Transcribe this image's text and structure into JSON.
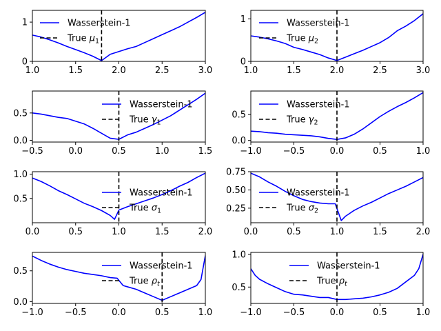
{
  "chart_data": [
    {
      "type": "line",
      "xlim": [
        1.0,
        3.0
      ],
      "ylim": [
        0,
        1.3
      ],
      "xticks": [
        1.0,
        1.5,
        2.0,
        2.5,
        3.0
      ],
      "xtick_labels": [
        "1.0",
        "1.5",
        "2.0",
        "2.5",
        "3.0"
      ],
      "yticks": [
        0,
        1
      ],
      "ytick_labels": [
        "0",
        "1"
      ],
      "legend_loc": "upper-left",
      "series": [
        {
          "name": "Wasserstein-1",
          "color": "#0000ff",
          "style": "solid",
          "x": [
            1.0,
            1.1,
            1.2,
            1.3,
            1.4,
            1.5,
            1.6,
            1.7,
            1.8,
            1.9,
            2.0,
            2.1,
            2.2,
            2.3,
            2.4,
            2.5,
            2.6,
            2.7,
            2.8,
            2.9,
            3.0
          ],
          "y": [
            0.67,
            0.62,
            0.55,
            0.47,
            0.38,
            0.3,
            0.22,
            0.13,
            0.02,
            0.18,
            0.25,
            0.32,
            0.38,
            0.48,
            0.58,
            0.68,
            0.78,
            0.88,
            1.0,
            1.12,
            1.25
          ]
        }
      ],
      "vline": {
        "name": "True μ₁",
        "name_base": "True ",
        "name_math": "μ",
        "name_sub": "1",
        "x": 1.8,
        "color": "#000000",
        "style": "dashed"
      }
    },
    {
      "type": "line",
      "xlim": [
        1.0,
        3.0
      ],
      "ylim": [
        0,
        1.2
      ],
      "xticks": [
        1.0,
        1.5,
        2.0,
        2.5,
        3.0
      ],
      "xtick_labels": [
        "1.0",
        "1.5",
        "2.0",
        "2.5",
        "3.0"
      ],
      "yticks": [
        0,
        1
      ],
      "ytick_labels": [
        "0",
        "1"
      ],
      "legend_loc": "upper-left",
      "series": [
        {
          "name": "Wasserstein-1",
          "color": "#0000ff",
          "style": "solid",
          "x": [
            1.0,
            1.1,
            1.2,
            1.3,
            1.4,
            1.5,
            1.6,
            1.7,
            1.8,
            1.9,
            2.0,
            2.1,
            2.2,
            2.3,
            2.4,
            2.5,
            2.6,
            2.7,
            2.8,
            2.9,
            3.0
          ],
          "y": [
            0.6,
            0.57,
            0.53,
            0.48,
            0.42,
            0.33,
            0.28,
            0.22,
            0.16,
            0.08,
            0.02,
            0.1,
            0.18,
            0.26,
            0.35,
            0.44,
            0.56,
            0.72,
            0.83,
            0.96,
            1.12
          ]
        }
      ],
      "vline": {
        "name": "True μ₂",
        "name_base": "True ",
        "name_math": "μ",
        "name_sub": "2",
        "x": 2.0,
        "color": "#000000",
        "style": "dashed"
      }
    },
    {
      "type": "line",
      "xlim": [
        -0.5,
        1.5
      ],
      "ylim": [
        -0.03,
        0.9
      ],
      "xticks": [
        -0.5,
        0.0,
        0.5,
        1.0,
        1.5
      ],
      "xtick_labels": [
        "−0.5",
        "0.0",
        "0.5",
        "1.0",
        "1.5"
      ],
      "yticks": [
        0.0,
        0.5
      ],
      "ytick_labels": [
        "0.0",
        "0.5"
      ],
      "legend_loc": "upper-right",
      "series": [
        {
          "name": "Wasserstein-1",
          "color": "#0000ff",
          "style": "solid",
          "x": [
            -0.5,
            -0.4,
            -0.3,
            -0.2,
            -0.1,
            0.0,
            0.1,
            0.2,
            0.3,
            0.4,
            0.5,
            0.6,
            0.7,
            0.8,
            0.9,
            1.0,
            1.1,
            1.2,
            1.3,
            1.4,
            1.5
          ],
          "y": [
            0.5,
            0.48,
            0.45,
            0.42,
            0.4,
            0.35,
            0.3,
            0.22,
            0.13,
            0.04,
            0.02,
            0.1,
            0.15,
            0.22,
            0.29,
            0.37,
            0.45,
            0.55,
            0.65,
            0.75,
            0.86
          ]
        }
      ],
      "vline": {
        "name": "True γ₁",
        "name_base": "True ",
        "name_math": "γ",
        "name_sub": "1",
        "x": 0.5,
        "color": "#000000",
        "style": "dashed"
      }
    },
    {
      "type": "line",
      "xlim": [
        -1.0,
        1.0
      ],
      "ylim": [
        -0.03,
        0.95
      ],
      "xticks": [
        -1.0,
        -0.5,
        0.0,
        0.5,
        1.0
      ],
      "xtick_labels": [
        "−1.0",
        "−0.5",
        "0.0",
        "0.5",
        "1.0"
      ],
      "yticks": [
        0.0,
        0.5
      ],
      "ytick_labels": [
        "0.0",
        "0.5"
      ],
      "legend_loc": "upper-left",
      "series": [
        {
          "name": "Wasserstein-1",
          "color": "#0000ff",
          "style": "solid",
          "x": [
            -1.0,
            -0.9,
            -0.8,
            -0.7,
            -0.6,
            -0.5,
            -0.4,
            -0.3,
            -0.2,
            -0.1,
            0.0,
            0.1,
            0.2,
            0.3,
            0.4,
            0.5,
            0.6,
            0.7,
            0.8,
            0.9,
            1.0
          ],
          "y": [
            0.18,
            0.17,
            0.15,
            0.14,
            0.12,
            0.11,
            0.1,
            0.09,
            0.07,
            0.04,
            0.02,
            0.05,
            0.12,
            0.22,
            0.34,
            0.46,
            0.56,
            0.65,
            0.73,
            0.82,
            0.92
          ]
        }
      ],
      "vline": {
        "name": "True γ₂",
        "name_base": "True ",
        "name_math": "γ",
        "name_sub": "2",
        "x": 0.0,
        "color": "#000000",
        "style": "dashed"
      }
    },
    {
      "type": "line",
      "xlim": [
        0.0,
        2.0
      ],
      "ylim": [
        0.0,
        1.05
      ],
      "xticks": [
        0.0,
        0.5,
        1.0,
        1.5,
        2.0
      ],
      "xtick_labels": [
        "0.0",
        "0.5",
        "1.0",
        "1.5",
        "2.0"
      ],
      "yticks": [
        0.5,
        1.0
      ],
      "ytick_labels": [
        "0.5",
        "1.0"
      ],
      "legend_loc": "center-right",
      "series": [
        {
          "name": "Wasserstein-1",
          "color": "#0000ff",
          "style": "solid",
          "x": [
            0.0,
            0.1,
            0.2,
            0.3,
            0.4,
            0.5,
            0.6,
            0.7,
            0.8,
            0.9,
            0.95,
            1.0,
            1.1,
            1.2,
            1.3,
            1.4,
            1.5,
            1.6,
            1.7,
            1.8,
            1.9,
            2.0
          ],
          "y": [
            0.92,
            0.85,
            0.76,
            0.66,
            0.58,
            0.49,
            0.4,
            0.33,
            0.25,
            0.15,
            0.07,
            0.26,
            0.33,
            0.39,
            0.45,
            0.51,
            0.58,
            0.66,
            0.75,
            0.83,
            0.93,
            1.02
          ]
        }
      ],
      "vline": {
        "name": "True σ₁",
        "name_base": "True ",
        "name_math": "σ",
        "name_sub": "1",
        "x": 1.0,
        "color": "#000000",
        "style": "dashed"
      }
    },
    {
      "type": "line",
      "xlim": [
        0.0,
        2.0
      ],
      "ylim": [
        0.05,
        0.75
      ],
      "xticks": [
        0.0,
        0.5,
        1.0,
        1.5,
        2.0
      ],
      "xtick_labels": [
        "0.0",
        "0.5",
        "1.0",
        "1.5",
        "2.0"
      ],
      "yticks": [
        0.25,
        0.5,
        0.75
      ],
      "ytick_labels": [
        "0.25",
        "0.50",
        "0.75"
      ],
      "legend_loc": "center",
      "series": [
        {
          "name": "Wasserstein-1",
          "color": "#0000ff",
          "style": "solid",
          "x": [
            0.0,
            0.1,
            0.2,
            0.3,
            0.4,
            0.5,
            0.6,
            0.7,
            0.8,
            0.9,
            0.98,
            1.05,
            1.1,
            1.2,
            1.3,
            1.4,
            1.5,
            1.6,
            1.7,
            1.8,
            1.9,
            2.0
          ],
          "y": [
            0.73,
            0.68,
            0.61,
            0.55,
            0.48,
            0.42,
            0.37,
            0.34,
            0.32,
            0.31,
            0.31,
            0.08,
            0.14,
            0.22,
            0.28,
            0.33,
            0.39,
            0.45,
            0.5,
            0.55,
            0.61,
            0.67
          ]
        }
      ],
      "vline": {
        "name": "True σ₂",
        "name_base": "True ",
        "name_math": "σ",
        "name_sub": "2",
        "x": 1.0,
        "color": "#000000",
        "style": "dashed"
      }
    },
    {
      "type": "line",
      "xlim": [
        -1.0,
        1.0
      ],
      "ylim": [
        -0.03,
        0.8
      ],
      "xticks": [
        -1.0,
        -0.5,
        0.0,
        0.5,
        1.0
      ],
      "xtick_labels": [
        "−1.0",
        "−0.5",
        "0.0",
        "0.5",
        "1.0"
      ],
      "yticks": [
        0.0,
        0.5
      ],
      "ytick_labels": [
        "0.0",
        "0.5"
      ],
      "legend_loc": "upper-right",
      "series": [
        {
          "name": "Wasserstein-1",
          "color": "#0000ff",
          "style": "solid",
          "x": [
            -1.0,
            -0.9,
            -0.8,
            -0.7,
            -0.6,
            -0.5,
            -0.4,
            -0.3,
            -0.2,
            -0.1,
            -0.02,
            0.05,
            0.1,
            0.2,
            0.3,
            0.4,
            0.5,
            0.6,
            0.7,
            0.8,
            0.9,
            0.95,
            1.0
          ],
          "y": [
            0.74,
            0.67,
            0.61,
            0.56,
            0.52,
            0.49,
            0.46,
            0.44,
            0.42,
            0.39,
            0.38,
            0.26,
            0.24,
            0.2,
            0.14,
            0.08,
            0.02,
            0.08,
            0.14,
            0.2,
            0.26,
            0.36,
            0.75
          ]
        }
      ],
      "vline": {
        "name": "True ρₜ",
        "name_base": "True ",
        "name_math": "ρ",
        "name_sub": "t",
        "x": 0.5,
        "color": "#000000",
        "style": "dashed"
      }
    },
    {
      "type": "line",
      "xlim": [
        -1.0,
        1.0
      ],
      "ylim": [
        0.25,
        1.03
      ],
      "xticks": [
        -1.0,
        -0.5,
        0.0,
        0.5,
        1.0
      ],
      "xtick_labels": [
        "−1.0",
        "−0.5",
        "0.0",
        "0.5",
        "1.0"
      ],
      "yticks": [
        0.5,
        1.0
      ],
      "ytick_labels": [
        "0.5",
        "1.0"
      ],
      "legend_loc": "upper-center",
      "series": [
        {
          "name": "Wasserstein-1",
          "color": "#0000ff",
          "style": "solid",
          "x": [
            -1.0,
            -0.95,
            -0.9,
            -0.8,
            -0.7,
            -0.6,
            -0.5,
            -0.4,
            -0.3,
            -0.2,
            -0.1,
            0.0,
            0.1,
            0.2,
            0.3,
            0.4,
            0.5,
            0.6,
            0.7,
            0.8,
            0.9,
            0.95,
            1.0
          ],
          "y": [
            0.78,
            0.68,
            0.62,
            0.55,
            0.49,
            0.43,
            0.39,
            0.38,
            0.36,
            0.34,
            0.34,
            0.31,
            0.31,
            0.32,
            0.33,
            0.35,
            0.38,
            0.42,
            0.48,
            0.58,
            0.68,
            0.78,
            1.0
          ]
        }
      ],
      "vline": {
        "name": "True ρₜ",
        "name_base": "True ",
        "name_math": "ρ",
        "name_sub": "t",
        "x": 0.0,
        "color": "#000000",
        "style": "dashed"
      }
    }
  ]
}
